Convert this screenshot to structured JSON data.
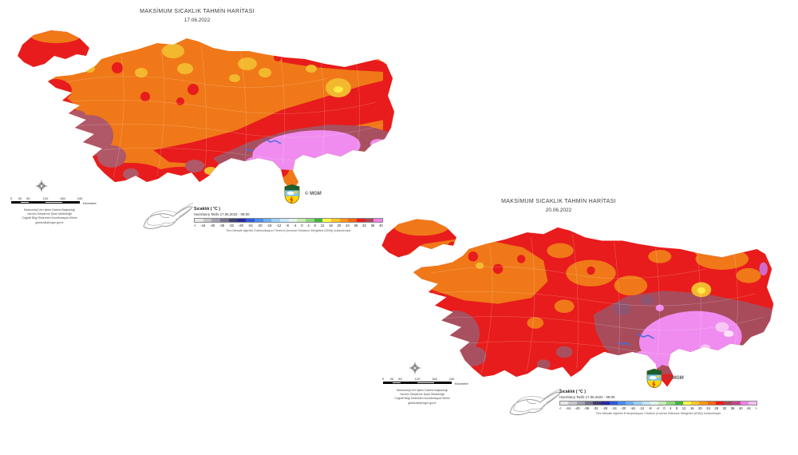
{
  "maps": [
    {
      "title": "MAKSİMUM SICAKLIK TAHMİN HARİTASI",
      "date": "17.06.2022",
      "copyright": "© MGM",
      "legend": {
        "title": "Sıcaklık ( °C )",
        "prepared": "Hazırlanış Tarihi 17.06.2022 - 08:00",
        "footnote": "Ters Mesafe Ağırlıklı Enterpolasyon Yöntemi (Inverse Distance Weighted (IDW)) kullanılmıştır",
        "ticks": [
          "<",
          "-44",
          "-40",
          "-36",
          "-32",
          "-28",
          "-24",
          "-20",
          "-16",
          "-12",
          "-8",
          "-4",
          "0",
          "4",
          "8",
          "12",
          "16",
          "20",
          "24",
          "28",
          "32",
          "36",
          "40"
        ],
        "colors": [
          "#e8e8e8",
          "#c6c6ce",
          "#a0a0b0",
          "#73738f",
          "#42426e",
          "#2a2aa0",
          "#2e5ae0",
          "#4a8aec",
          "#70aef4",
          "#9cd0fa",
          "#c6e6fd",
          "#e6f6ef",
          "#c8ecb4",
          "#8cd878",
          "#44b444",
          "#ffff46",
          "#ffc828",
          "#ff9618",
          "#f26a10",
          "#e81c1c",
          "#a84858",
          "#f080e8"
        ]
      },
      "scalebar": {
        "values": [
          0,
          30,
          60,
          120,
          180,
          240
        ],
        "labels": [
          "0",
          "30",
          "60",
          "120",
          "180",
          "240"
        ],
        "unit": "Kilometre"
      },
      "attribution": [
        "Meteoroloji Veri İşlem Dairesi Başkanlığı",
        "Yazılım Geliştirme Şube Müdürlüğü",
        "Coğrafi Bilgi Sistemleri Koordinasyon Birimi",
        "gisteknik@mgm.gov.tr"
      ]
    },
    {
      "title": "MAKSİMUM SICAKLIK TAHMİN HARİTASI",
      "date": "20.06.2022",
      "copyright": "© MGM",
      "legend": {
        "title": "Sıcaklık ( °C )",
        "prepared": "Hazırlanış Tarihi 17.06.2022 - 08:00",
        "footnote": "Ters Mesafe Ağırlıklı Enterpolasyon Yöntemi (Inverse Distance Weighted (IDW)) kullanılmıştır",
        "ticks": [
          "<",
          "-44",
          "-40",
          "-36",
          "-32",
          "-28",
          "-24",
          "-20",
          "-16",
          "-12",
          "-8",
          "-4",
          "0",
          "4",
          "8",
          "12",
          "16",
          "20",
          "24",
          "28",
          "32",
          "36",
          "40",
          "44",
          ">"
        ],
        "colors": [
          "#e8e8e8",
          "#c6c6ce",
          "#a0a0b0",
          "#73738f",
          "#42426e",
          "#2a2aa0",
          "#2e5ae0",
          "#4a8aec",
          "#70aef4",
          "#9cd0fa",
          "#c6e6fd",
          "#e6f6ef",
          "#c8ecb4",
          "#8cd878",
          "#44b444",
          "#ffff46",
          "#ffc828",
          "#ff9618",
          "#f26a10",
          "#e81c1c",
          "#a84858",
          "#c2488a",
          "#f080e8",
          "#f6bff2"
        ]
      },
      "scalebar": {
        "values": [
          0,
          30,
          60,
          120,
          180,
          240
        ],
        "labels": [
          "0",
          "30",
          "60",
          "120",
          "180",
          "240"
        ],
        "unit": "Kilometre"
      },
      "attribution": [
        "Meteoroloji Veri İşlem Dairesi Başkanlığı",
        "Yazılım Geliştirme Şube Müdürlüğü",
        "Coğrafi Bilgi Sistemleri Koordinasyon Birimi",
        "gisteknik@mgm.gov.tr"
      ]
    }
  ]
}
